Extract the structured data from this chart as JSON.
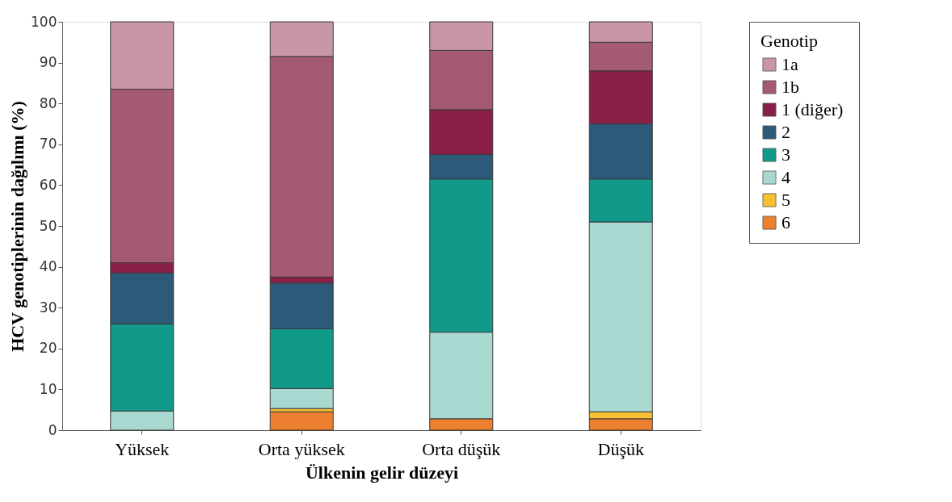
{
  "chart_data": {
    "type": "bar",
    "stacked": true,
    "xlabel": "Ülkenin gelir düzeyi",
    "ylabel": "HCV genotiplerinin dağılımı (%)",
    "legend_title": "Genotip",
    "legend": "right",
    "categories": [
      "Yüksek",
      "Orta yüksek",
      "Orta düşük",
      "Düşük"
    ],
    "ylim": [
      0,
      100
    ],
    "yticks": [
      0,
      10,
      20,
      30,
      40,
      50,
      60,
      70,
      80,
      90,
      100
    ],
    "grid": false,
    "series": [
      {
        "name": "6",
        "color": "#ec7f30",
        "values": [
          null,
          4.5,
          2.8,
          2.8
        ]
      },
      {
        "name": "5",
        "color": "#f8c030",
        "values": [
          null,
          0.8,
          null,
          1.7
        ]
      },
      {
        "name": "4",
        "color": "#a8d8d0",
        "values": [
          4.7,
          4.9,
          21.2,
          46.5
        ]
      },
      {
        "name": "3",
        "color": "#11998a",
        "values": [
          21.3,
          14.6,
          37.5,
          10.5
        ]
      },
      {
        "name": "2",
        "color": "#2e5a7a",
        "values": [
          12.5,
          11.2,
          6,
          13.5
        ]
      },
      {
        "name": "1  (diğer)",
        "color": "#8a1f4a",
        "values": [
          2.5,
          1.5,
          11,
          13
        ]
      },
      {
        "name": "1b",
        "color": "#a45a72",
        "values": [
          42.5,
          54,
          14.5,
          7
        ]
      },
      {
        "name": "1a",
        "color": "#c896a8",
        "values": [
          16.5,
          8.5,
          7,
          5
        ]
      }
    ]
  }
}
